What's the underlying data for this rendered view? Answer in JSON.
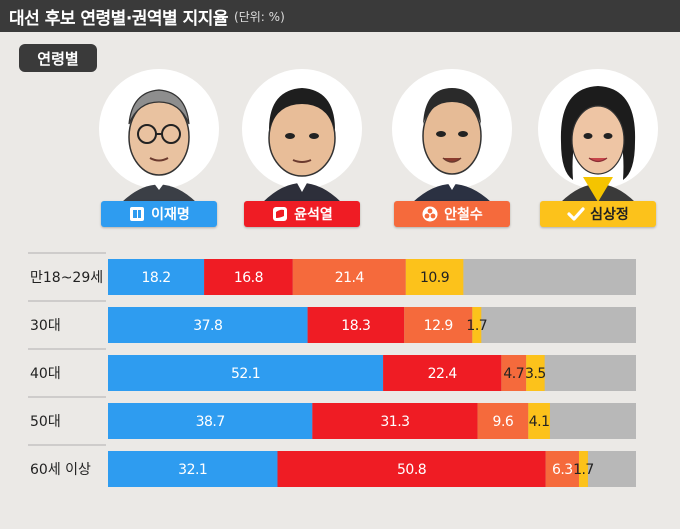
{
  "header": {
    "title": "대선 후보 연령별·권역별 지지율",
    "unit": "(단위: %)"
  },
  "section_label": "연령별",
  "candidates": [
    {
      "name": "이재명",
      "color": "#2e9cf0",
      "icon": "party-logo-blue-icon"
    },
    {
      "name": "윤석열",
      "color": "#ef1c24",
      "icon": "party-logo-red-icon"
    },
    {
      "name": "안철수",
      "color": "#f56a3c",
      "icon": "party-logo-orange-icon"
    },
    {
      "name": "심상정",
      "color": "#fcc21b",
      "icon": "check-icon"
    }
  ],
  "colors": {
    "other": "#b8b8b8",
    "background": "#ebe9e6"
  },
  "chart_data": {
    "type": "bar",
    "orientation": "horizontal",
    "stacked": true,
    "xlim": [
      0,
      100
    ],
    "categories": [
      "만18~29세",
      "30대",
      "40대",
      "50대",
      "60세 이상"
    ],
    "series": [
      {
        "name": "이재명",
        "values": [
          18.2,
          37.8,
          52.1,
          38.7,
          32.1
        ]
      },
      {
        "name": "윤석열",
        "values": [
          16.8,
          18.3,
          22.4,
          31.3,
          50.8
        ]
      },
      {
        "name": "안철수",
        "values": [
          21.4,
          12.9,
          4.7,
          9.6,
          6.3
        ]
      },
      {
        "name": "심상정",
        "values": [
          10.9,
          1.7,
          3.5,
          4.1,
          1.7
        ]
      }
    ],
    "labels": [
      [
        "18.2",
        "16.8",
        "21.4",
        "10.9"
      ],
      [
        "37.8",
        "18.3",
        "12.9",
        "1.7"
      ],
      [
        "52.1",
        "22.4",
        "4.7",
        "3.5"
      ],
      [
        "38.7",
        "31.3",
        "9.6",
        "4.1"
      ],
      [
        "32.1",
        "50.8",
        "6.3",
        "1.7"
      ]
    ]
  }
}
